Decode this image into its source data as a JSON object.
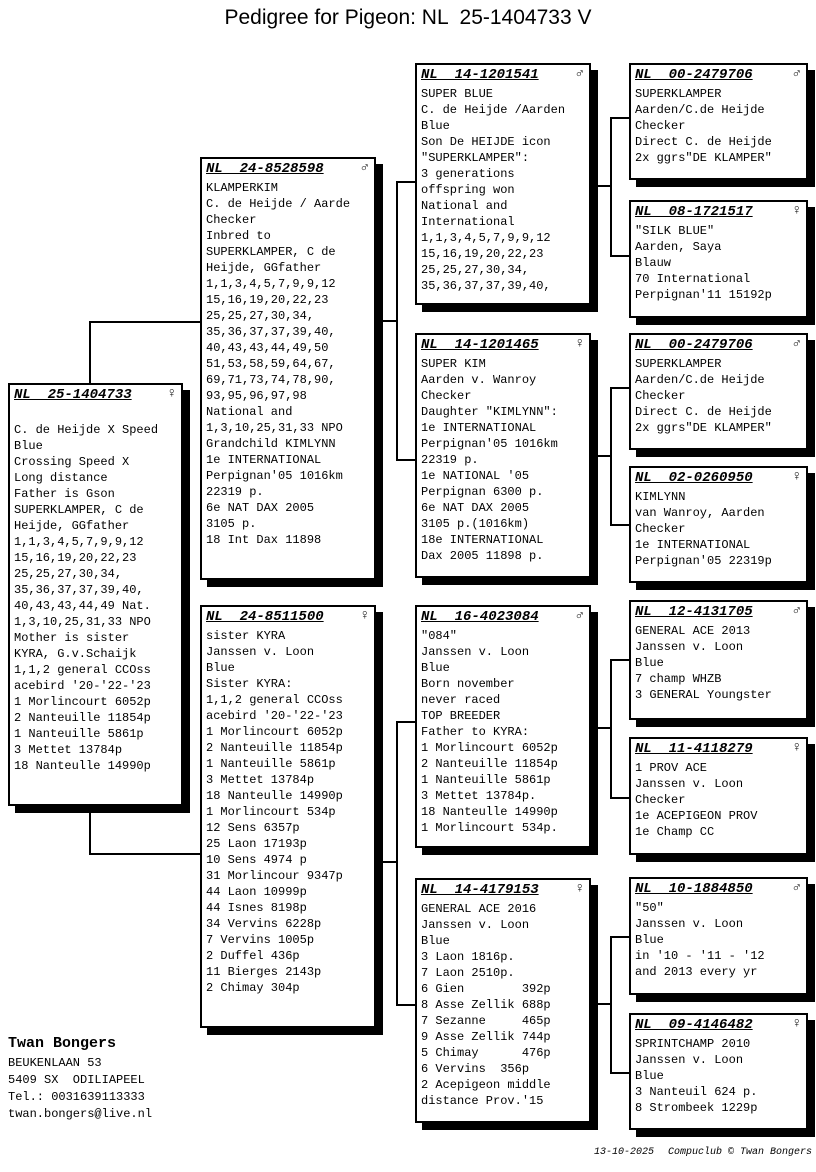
{
  "title": "Pedigree for Pigeon: NL  25-1404733 V",
  "boxes": [
    {
      "ring": "NL  25-1404733",
      "sex": "female",
      "sex_symbol": "♀",
      "lines": [
        "",
        "C. de Heijde X Speed",
        "Blue",
        "Crossing Speed X",
        "Long distance",
        "Father is Gson",
        "SUPERKLAMPER, C de",
        "Heijde, GGfather",
        "1,1,3,4,5,7,9,9,12",
        "15,16,19,20,22,23",
        "25,25,27,30,34,",
        "35,36,37,37,39,40,",
        "40,43,43,44,49 Nat.",
        "1,3,10,25,31,33 NPO",
        "Mother is sister",
        "KYRA, G.v.Schaijk",
        "1,1,2 general CCOss",
        "acebird '20-'22-'23",
        "1 Morlincourt 6052p",
        "2 Nanteuille 11854p",
        "1 Nanteuille 5861p",
        "3 Mettet 13784p",
        "18 Nanteulle 14990p"
      ]
    },
    {
      "ring": "NL  24-8528598",
      "sex": "male",
      "sex_symbol": "♂",
      "lines": [
        "KLAMPERKIM",
        "C. de Heijde / Aarde",
        "Checker",
        "Inbred to",
        "SUPERKLAMPER, C de",
        "Heijde, GGfather",
        "1,1,3,4,5,7,9,9,12",
        "15,16,19,20,22,23",
        "25,25,27,30,34,",
        "35,36,37,37,39,40,",
        "40,43,43,44,49,50",
        "51,53,58,59,64,67,",
        "69,71,73,74,78,90,",
        "93,95,96,97,98",
        "National and",
        "1,3,10,25,31,33 NPO",
        "Grandchild KIMLYNN",
        "1e INTERNATIONAL",
        "Perpignan'05 1016km",
        "22319 p.",
        "6e NAT DAX 2005",
        "3105 p.",
        "18 Int Dax 11898"
      ]
    },
    {
      "ring": "NL  24-8511500",
      "sex": "female",
      "sex_symbol": "♀",
      "lines": [
        "sister KYRA",
        "Janssen v. Loon",
        "Blue",
        "Sister KYRA:",
        "1,1,2 general CCOss",
        "acebird '20-'22-'23",
        "1 Morlincourt 6052p",
        "2 Nanteuille 11854p",
        "1 Nanteuille 5861p",
        "3 Mettet 13784p",
        "18 Nanteulle 14990p",
        "1 Morlincourt 534p",
        "12 Sens 6357p",
        "25 Laon 17193p",
        "10 Sens 4974 p",
        "31 Morlincour 9347p",
        "44 Laon 10999p",
        "44 Isnes 8198p",
        "34 Vervins 6228p",
        "7 Vervins 1005p",
        "2 Duffel 436p",
        "11 Bierges 2143p",
        "2 Chimay 304p"
      ]
    },
    {
      "ring": "NL  14-1201541",
      "sex": "male",
      "sex_symbol": "♂",
      "lines": [
        "SUPER BLUE",
        "C. de Heijde /Aarden",
        "Blue",
        "Son De HEIJDE icon",
        "\"SUPERKLAMPER\":",
        "3 generations",
        "offspring won",
        "National and",
        "International",
        "1,1,3,4,5,7,9,9,12",
        "15,16,19,20,22,23",
        "25,25,27,30,34,",
        "35,36,37,37,39,40,"
      ]
    },
    {
      "ring": "NL  14-1201465",
      "sex": "female",
      "sex_symbol": "♀",
      "lines": [
        "SUPER KIM",
        "Aarden v. Wanroy",
        "Checker",
        "Daughter \"KIMLYNN\":",
        "1e INTERNATIONAL",
        "Perpignan'05 1016km",
        "22319 p.",
        "1e NATIONAL '05",
        "Perpignan 6300 p.",
        "6e NAT DAX 2005",
        "3105 p.(1016km)",
        "18e INTERNATIONAL",
        "Dax 2005 11898 p."
      ]
    },
    {
      "ring": "NL  16-4023084",
      "sex": "male",
      "sex_symbol": "♂",
      "lines": [
        "\"084\"",
        "Janssen v. Loon",
        "Blue",
        "Born november",
        "never raced",
        "TOP BREEDER",
        "Father to KYRA:",
        "1 Morlincourt 6052p",
        "2 Nanteuille 11854p",
        "1 Nanteuille 5861p",
        "3 Mettet 13784p.",
        "18 Nanteulle 14990p",
        "1 Morlincourt 534p."
      ]
    },
    {
      "ring": "NL  14-4179153",
      "sex": "female",
      "sex_symbol": "♀",
      "lines": [
        "GENERAL ACE 2016",
        "Janssen v. Loon",
        "Blue",
        "3 Laon 1816p.",
        "7 Laon 2510p.",
        "6 Gien        392p",
        "8 Asse Zellik 688p",
        "7 Sezanne     465p",
        "9 Asse Zellik 744p",
        "5 Chimay      476p",
        "6 Vervins  356p",
        "2 Acepigeon middle",
        "distance Prov.'15"
      ]
    },
    {
      "ring": "NL  00-2479706",
      "sex": "male",
      "sex_symbol": "♂",
      "lines": [
        "SUPERKLAMPER",
        "Aarden/C.de Heijde",
        "Checker",
        "Direct C. de Heijde",
        "2x ggrs\"DE KLAMPER\""
      ]
    },
    {
      "ring": "NL  08-1721517",
      "sex": "female",
      "sex_symbol": "♀",
      "lines": [
        "\"SILK BLUE\"",
        "Aarden, Saya",
        "Blauw",
        "70 International",
        "Perpignan'11 15192p"
      ]
    },
    {
      "ring": "NL  00-2479706",
      "sex": "male",
      "sex_symbol": "♂",
      "lines": [
        "SUPERKLAMPER",
        "Aarden/C.de Heijde",
        "Checker",
        "Direct C. de Heijde",
        "2x ggrs\"DE KLAMPER\""
      ]
    },
    {
      "ring": "NL  02-0260950",
      "sex": "female",
      "sex_symbol": "♀",
      "lines": [
        "KIMLYNN",
        "van Wanroy, Aarden",
        "Checker",
        "1e INTERNATIONAL",
        "Perpignan'05 22319p"
      ]
    },
    {
      "ring": "NL  12-4131705",
      "sex": "male",
      "sex_symbol": "♂",
      "lines": [
        "GENERAL ACE 2013",
        "Janssen v. Loon",
        "Blue",
        "7 champ WHZB",
        "3 GENERAL Youngster"
      ]
    },
    {
      "ring": "NL  11-4118279",
      "sex": "female",
      "sex_symbol": "♀",
      "lines": [
        "1 PROV ACE",
        "Janssen v. Loon",
        "Checker",
        "1e ACEPIGEON PROV",
        "1e Champ CC"
      ]
    },
    {
      "ring": "NL  10-1884850",
      "sex": "male",
      "sex_symbol": "♂",
      "lines": [
        "\"50\"",
        "Janssen v. Loon",
        "Blue",
        "in '10 - '11 - '12",
        "and 2013 every yr"
      ]
    },
    {
      "ring": "NL  09-4146482",
      "sex": "female",
      "sex_symbol": "♀",
      "lines": [
        "SPRINTCHAMP 2010",
        "Janssen v. Loon",
        "Blue",
        "3 Nanteuil 624 p.",
        "8 Strombeek 1229p"
      ]
    }
  ],
  "footer": {
    "owner": "Twan Bongers",
    "address_lines": [
      "BEUKENLAAN 53",
      "5409 SX  ODILIAPEEL",
      "Tel.: 0031639113333",
      "twan.bongers@live.nl"
    ],
    "date": "13-10-2025",
    "credit": "Compuclub © Twan Bongers"
  }
}
